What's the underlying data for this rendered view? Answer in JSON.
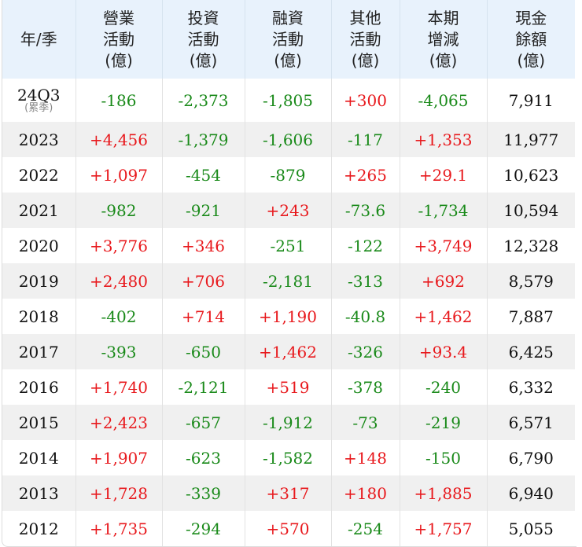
{
  "table": {
    "headers": [
      {
        "lines": [
          "年/季"
        ]
      },
      {
        "lines": [
          "營業",
          "活動",
          "(億)"
        ]
      },
      {
        "lines": [
          "投資",
          "活動",
          "(億)"
        ]
      },
      {
        "lines": [
          "融資",
          "活動",
          "(億)"
        ]
      },
      {
        "lines": [
          "其他",
          "活動",
          "(億)"
        ]
      },
      {
        "lines": [
          "本期",
          "增減",
          "(億)"
        ]
      },
      {
        "lines": [
          "現金",
          "餘額",
          "(億)"
        ]
      }
    ],
    "colors": {
      "positive": "#e8191d",
      "negative": "#1a8a1a",
      "neutral": "#111111",
      "header_bg": "#e8f2fc",
      "row_shade": "#f0f0f0"
    },
    "rows": [
      {
        "period": "24Q3",
        "period_note": "(累季)",
        "operating": "-186",
        "investing": "-2,373",
        "financing": "-1,805",
        "other": "+300",
        "net_change": "-4,065",
        "cash_balance": "7,911"
      },
      {
        "period": "2023",
        "operating": "+4,456",
        "investing": "-1,379",
        "financing": "-1,606",
        "other": "-117",
        "net_change": "+1,353",
        "cash_balance": "11,977"
      },
      {
        "period": "2022",
        "operating": "+1,097",
        "investing": "-454",
        "financing": "-879",
        "other": "+265",
        "net_change": "+29.1",
        "cash_balance": "10,623"
      },
      {
        "period": "2021",
        "operating": "-982",
        "investing": "-921",
        "financing": "+243",
        "other": "-73.6",
        "net_change": "-1,734",
        "cash_balance": "10,594"
      },
      {
        "period": "2020",
        "operating": "+3,776",
        "investing": "+346",
        "financing": "-251",
        "other": "-122",
        "net_change": "+3,749",
        "cash_balance": "12,328"
      },
      {
        "period": "2019",
        "operating": "+2,480",
        "investing": "+706",
        "financing": "-2,181",
        "other": "-313",
        "net_change": "+692",
        "cash_balance": "8,579"
      },
      {
        "period": "2018",
        "operating": "-402",
        "investing": "+714",
        "financing": "+1,190",
        "other": "-40.8",
        "net_change": "+1,462",
        "cash_balance": "7,887"
      },
      {
        "period": "2017",
        "operating": "-393",
        "investing": "-650",
        "financing": "+1,462",
        "other": "-326",
        "net_change": "+93.4",
        "cash_balance": "6,425"
      },
      {
        "period": "2016",
        "operating": "+1,740",
        "investing": "-2,121",
        "financing": "+519",
        "other": "-378",
        "net_change": "-240",
        "cash_balance": "6,332"
      },
      {
        "period": "2015",
        "operating": "+2,423",
        "investing": "-657",
        "financing": "-1,912",
        "other": "-73",
        "net_change": "-219",
        "cash_balance": "6,571"
      },
      {
        "period": "2014",
        "operating": "+1,907",
        "investing": "-623",
        "financing": "-1,582",
        "other": "+148",
        "net_change": "-150",
        "cash_balance": "6,790"
      },
      {
        "period": "2013",
        "operating": "+1,728",
        "investing": "-339",
        "financing": "+317",
        "other": "+180",
        "net_change": "+1,885",
        "cash_balance": "6,940"
      },
      {
        "period": "2012",
        "operating": "+1,735",
        "investing": "-294",
        "financing": "+570",
        "other": "-254",
        "net_change": "+1,757",
        "cash_balance": "5,055"
      }
    ]
  }
}
